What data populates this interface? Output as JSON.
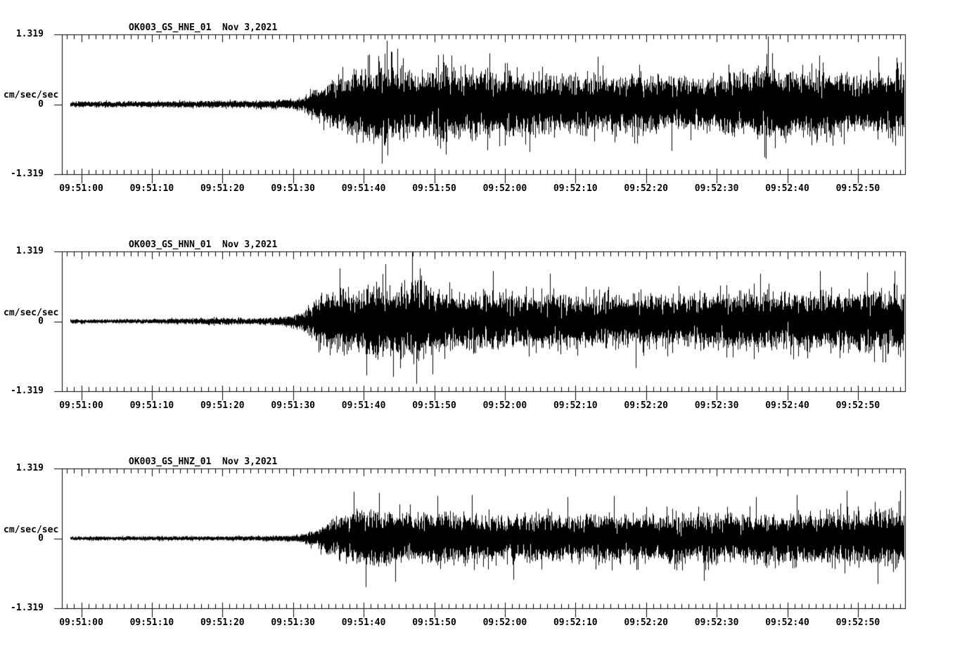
{
  "page": {
    "background": "#ffffff",
    "foreground": "#000000",
    "description_date": "Nov 3,2021"
  },
  "chart_data": [
    {
      "type": "line",
      "subtype": "seismogram",
      "title": "OK003_GS_HNE_01  Nov 3,2021",
      "station_channel": "OK003_GS_HNE_01",
      "date": "Nov 3,2021",
      "ylabel": "cm/sec/sec",
      "y_ticks": [
        "1.319",
        "0",
        "-1.319"
      ],
      "ylim": [
        -1.319,
        1.319
      ],
      "grid": false,
      "x_tick_labels": [
        "09:51:00",
        "09:51:10",
        "09:51:20",
        "09:51:30",
        "09:51:40",
        "09:51:50",
        "09:52:00",
        "09:52:10",
        "09:52:20",
        "09:52:30",
        "09:52:40",
        "09:52:50"
      ],
      "x_major_interval_sec": 10,
      "x_minor_interval_sec": 1,
      "envelope_t_amp": [
        [
          -2,
          0.07
        ],
        [
          10,
          0.07
        ],
        [
          18,
          0.08
        ],
        [
          24,
          0.09
        ],
        [
          28,
          0.1
        ],
        [
          31,
          0.14
        ],
        [
          33,
          0.32
        ],
        [
          35,
          0.52
        ],
        [
          38,
          0.72
        ],
        [
          41,
          0.88
        ],
        [
          43,
          1.0
        ],
        [
          45,
          0.82
        ],
        [
          48,
          0.75
        ],
        [
          51,
          0.88
        ],
        [
          54,
          0.78
        ],
        [
          57,
          0.82
        ],
        [
          60,
          0.72
        ],
        [
          64,
          0.75
        ],
        [
          68,
          0.66
        ],
        [
          72,
          0.7
        ],
        [
          76,
          0.66
        ],
        [
          80,
          0.7
        ],
        [
          84,
          0.64
        ],
        [
          88,
          0.62
        ],
        [
          92,
          0.7
        ],
        [
          95,
          0.78
        ],
        [
          97,
          0.98
        ],
        [
          99,
          0.78
        ],
        [
          102,
          0.7
        ],
        [
          106,
          0.74
        ],
        [
          110,
          0.66
        ],
        [
          113,
          0.7
        ],
        [
          117,
          0.74
        ]
      ],
      "spikes_t_amp": [
        [
          42.6,
          -1.12
        ],
        [
          43.3,
          1.2
        ],
        [
          44.8,
          1.05
        ],
        [
          51.6,
          -0.95
        ],
        [
          52.4,
          0.92
        ],
        [
          57.8,
          0.96
        ],
        [
          63.5,
          -0.9
        ],
        [
          73.2,
          0.9
        ],
        [
          83.6,
          -0.88
        ],
        [
          96.8,
          -1.0
        ],
        [
          97.3,
          1.28
        ],
        [
          104.5,
          0.92
        ],
        [
          112.9,
          0.9
        ],
        [
          115.5,
          0.88
        ]
      ]
    },
    {
      "type": "line",
      "subtype": "seismogram",
      "title": "OK003_GS_HNN_01  Nov 3,2021",
      "station_channel": "OK003_GS_HNN_01",
      "date": "Nov 3,2021",
      "ylabel": "cm/sec/sec",
      "y_ticks": [
        "1.319",
        "0",
        "-1.319"
      ],
      "ylim": [
        -1.319,
        1.319
      ],
      "grid": false,
      "x_tick_labels": [
        "09:51:00",
        "09:51:10",
        "09:51:20",
        "09:51:30",
        "09:51:40",
        "09:51:50",
        "09:52:00",
        "09:52:10",
        "09:52:20",
        "09:52:30",
        "09:52:40",
        "09:52:50"
      ],
      "x_major_interval_sec": 10,
      "x_minor_interval_sec": 1,
      "envelope_t_amp": [
        [
          -2,
          0.05
        ],
        [
          8,
          0.05
        ],
        [
          14,
          0.07
        ],
        [
          19,
          0.08
        ],
        [
          24,
          0.07
        ],
        [
          28,
          0.09
        ],
        [
          31,
          0.2
        ],
        [
          33,
          0.48
        ],
        [
          35,
          0.68
        ],
        [
          37,
          0.78
        ],
        [
          40,
          0.74
        ],
        [
          42,
          0.84
        ],
        [
          44,
          0.8
        ],
        [
          46,
          0.92
        ],
        [
          47,
          1.02
        ],
        [
          49,
          0.82
        ],
        [
          51,
          0.72
        ],
        [
          54,
          0.62
        ],
        [
          58,
          0.66
        ],
        [
          62,
          0.6
        ],
        [
          66,
          0.64
        ],
        [
          70,
          0.6
        ],
        [
          75,
          0.62
        ],
        [
          80,
          0.6
        ],
        [
          85,
          0.62
        ],
        [
          90,
          0.62
        ],
        [
          95,
          0.66
        ],
        [
          100,
          0.66
        ],
        [
          105,
          0.68
        ],
        [
          110,
          0.7
        ],
        [
          114,
          0.72
        ],
        [
          117,
          0.72
        ]
      ],
      "spikes_t_amp": [
        [
          36.6,
          1.0
        ],
        [
          40.4,
          -1.02
        ],
        [
          43.1,
          1.08
        ],
        [
          44.2,
          -1.05
        ],
        [
          46.9,
          1.3
        ],
        [
          47.5,
          -1.18
        ],
        [
          49.8,
          -1.0
        ],
        [
          58.3,
          0.95
        ],
        [
          66.4,
          0.9
        ],
        [
          78.5,
          -0.88
        ],
        [
          96.2,
          0.9
        ],
        [
          104.6,
          0.95
        ],
        [
          111.3,
          0.92
        ],
        [
          115.2,
          0.95
        ]
      ]
    },
    {
      "type": "line",
      "subtype": "seismogram",
      "title": "OK003_GS_HNZ_01  Nov 3,2021",
      "station_channel": "OK003_GS_HNZ_01",
      "date": "Nov 3,2021",
      "ylabel": "cm/sec/sec",
      "y_ticks": [
        "1.319",
        "0",
        "-1.319"
      ],
      "ylim": [
        -1.319,
        1.319
      ],
      "grid": false,
      "x_tick_labels": [
        "09:51:00",
        "09:51:10",
        "09:51:20",
        "09:51:30",
        "09:51:40",
        "09:51:50",
        "09:52:00",
        "09:52:10",
        "09:52:20",
        "09:52:30",
        "09:52:40",
        "09:52:50"
      ],
      "x_major_interval_sec": 10,
      "x_minor_interval_sec": 1,
      "envelope_t_amp": [
        [
          -2,
          0.045
        ],
        [
          15,
          0.05
        ],
        [
          25,
          0.055
        ],
        [
          29,
          0.07
        ],
        [
          31,
          0.1
        ],
        [
          33,
          0.2
        ],
        [
          35,
          0.38
        ],
        [
          37,
          0.52
        ],
        [
          39,
          0.66
        ],
        [
          41,
          0.7
        ],
        [
          43,
          0.67
        ],
        [
          46,
          0.6
        ],
        [
          49,
          0.56
        ],
        [
          52,
          0.6
        ],
        [
          56,
          0.56
        ],
        [
          60,
          0.56
        ],
        [
          65,
          0.55
        ],
        [
          70,
          0.52
        ],
        [
          75,
          0.56
        ],
        [
          80,
          0.55
        ],
        [
          85,
          0.56
        ],
        [
          90,
          0.55
        ],
        [
          95,
          0.56
        ],
        [
          100,
          0.58
        ],
        [
          105,
          0.6
        ],
        [
          110,
          0.62
        ],
        [
          114,
          0.65
        ],
        [
          117,
          0.65
        ]
      ],
      "spikes_t_amp": [
        [
          38.6,
          0.88
        ],
        [
          40.3,
          -0.92
        ],
        [
          42.2,
          0.86
        ],
        [
          44.5,
          -0.82
        ],
        [
          50.4,
          0.8
        ],
        [
          55.3,
          0.82
        ],
        [
          61.2,
          -0.78
        ],
        [
          68.9,
          0.78
        ],
        [
          75.4,
          0.8
        ],
        [
          88.2,
          -0.8
        ],
        [
          95.6,
          0.78
        ],
        [
          101.3,
          0.82
        ],
        [
          108.4,
          0.9
        ],
        [
          112.8,
          -0.86
        ],
        [
          116.0,
          0.9
        ]
      ]
    }
  ]
}
